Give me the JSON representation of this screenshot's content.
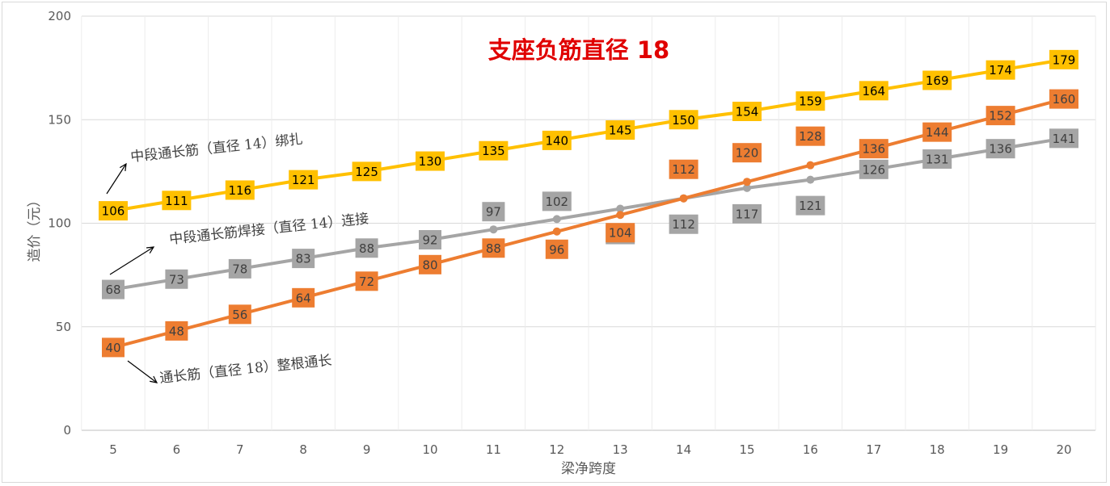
{
  "chart_data": {
    "type": "line",
    "title": "支座负筋直径 18",
    "xlabel": "梁净跨度",
    "ylabel": "造价（元）",
    "categories": [
      "5",
      "6",
      "7",
      "8",
      "9",
      "10",
      "11",
      "12",
      "13",
      "14",
      "15",
      "16",
      "17",
      "18",
      "19",
      "20"
    ],
    "ylim": [
      0,
      200
    ],
    "yticks": [
      "0",
      "50",
      "100",
      "150",
      "200"
    ],
    "grid": true,
    "legend": "none",
    "series": [
      {
        "name": "中段通长筋（直径 14）绑扎",
        "color": "#ffc000",
        "values": [
          106,
          111,
          116,
          121,
          125,
          130,
          135,
          140,
          145,
          150,
          154,
          159,
          164,
          169,
          174,
          179
        ]
      },
      {
        "name": "中段通长筋焊接（直径 14）连接",
        "color": "#a5a5a5",
        "values": [
          68,
          73,
          78,
          83,
          88,
          92,
          97,
          102,
          107,
          112,
          117,
          121,
          126,
          131,
          136,
          141
        ]
      },
      {
        "name": "通长筋（直径 18）整根通长",
        "color": "#ed7d31",
        "values": [
          40,
          48,
          56,
          64,
          72,
          80,
          88,
          96,
          104,
          112,
          120,
          128,
          136,
          144,
          152,
          160
        ]
      }
    ]
  }
}
